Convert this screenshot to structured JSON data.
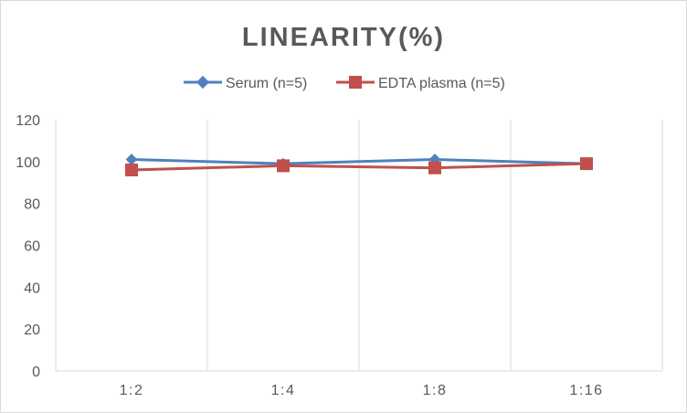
{
  "chart_data": {
    "type": "line",
    "title": "LINEARITY(%)",
    "categories": [
      "1:2",
      "1:4",
      "1:8",
      "1:16"
    ],
    "series": [
      {
        "name": "Serum (n=5)",
        "values": [
          101,
          99,
          101,
          99
        ],
        "color": "#4f81bd",
        "marker": "diamond"
      },
      {
        "name": "EDTA plasma (n=5)",
        "values": [
          96,
          98,
          97,
          99
        ],
        "color": "#c0504d",
        "marker": "square"
      }
    ],
    "ylim": [
      0,
      120
    ],
    "yticks": [
      "0",
      "20",
      "40",
      "60",
      "80",
      "100",
      "120"
    ],
    "xlabel": "",
    "ylabel": "",
    "grid": "vertical",
    "legend": "top-center"
  },
  "colors": {
    "gridline": "#d9d9d9",
    "axis": "#d9d9d9",
    "text": "#595959"
  }
}
